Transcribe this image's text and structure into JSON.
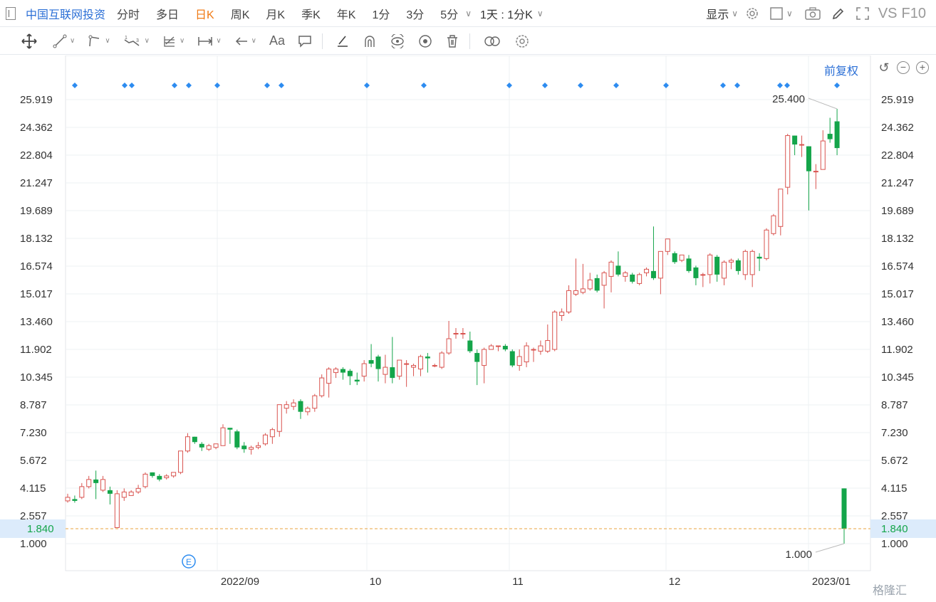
{
  "top_bar": {
    "stock_name": "中国互联网投资",
    "periods": [
      "分时",
      "多日",
      "日K",
      "周K",
      "月K",
      "季K",
      "年K",
      "1分",
      "3分",
      "5分"
    ],
    "active_period": "日K",
    "range_select": "1天 : 1分K",
    "display_label": "显示",
    "vs_label": "VS",
    "f10_label": "F10"
  },
  "draw_tools": [
    "move-icon",
    "line-icon",
    "polyline-icon",
    "wave-icon",
    "fib-icon",
    "range-icon",
    "arrow-icon",
    "text-icon",
    "comment-icon",
    "pen-icon",
    "arc-icon",
    "eye-cycle-icon",
    "eye-icon",
    "trash-icon",
    "link-icon",
    "settings-icon"
  ],
  "text_tool_label": "Aa",
  "adjust_label": "前复权",
  "watermark": "格隆汇",
  "colors": {
    "up": "#d9534f",
    "down": "#14a54a",
    "accent": "#2b6fd6",
    "active": "#f07a14",
    "current_line": "#e8a33d"
  },
  "chart_data": {
    "type": "candlestick",
    "y_ticks": [
      "25.919",
      "24.362",
      "22.804",
      "21.247",
      "19.689",
      "18.132",
      "16.574",
      "15.017",
      "13.460",
      "11.902",
      "10.345",
      "8.787",
      "7.230",
      "5.672",
      "4.115",
      "2.557",
      "1.000"
    ],
    "ylim": [
      1.0,
      25.919
    ],
    "x_labels": [
      "2022/09",
      "10",
      "11",
      "12",
      "2023/01"
    ],
    "current_price": "1.840",
    "max_label": "25.400",
    "min_label": "1.000",
    "event_marker": "E",
    "candles": [
      {
        "o": 3.4,
        "c": 3.6,
        "h": 3.8,
        "l": 3.3
      },
      {
        "o": 3.5,
        "c": 3.4,
        "h": 3.7,
        "l": 3.3
      },
      {
        "o": 3.6,
        "c": 4.2,
        "h": 4.4,
        "l": 3.5
      },
      {
        "o": 4.2,
        "c": 4.6,
        "h": 4.8,
        "l": 4.1
      },
      {
        "o": 4.6,
        "c": 4.4,
        "h": 5.1,
        "l": 3.5
      },
      {
        "o": 4.0,
        "c": 4.6,
        "h": 4.8,
        "l": 3.9
      },
      {
        "o": 4.0,
        "c": 3.8,
        "h": 4.2,
        "l": 3.2
      },
      {
        "o": 1.9,
        "c": 3.8,
        "h": 4.0,
        "l": 1.9
      },
      {
        "o": 3.6,
        "c": 3.9,
        "h": 4.1,
        "l": 3.4
      },
      {
        "o": 3.7,
        "c": 3.9,
        "h": 4.0,
        "l": 3.7
      },
      {
        "o": 3.9,
        "c": 4.1,
        "h": 4.3,
        "l": 3.8
      },
      {
        "o": 4.2,
        "c": 4.9,
        "h": 5.0,
        "l": 4.1
      },
      {
        "o": 5.0,
        "c": 4.8,
        "h": 5.0,
        "l": 4.7
      },
      {
        "o": 4.8,
        "c": 4.6,
        "h": 4.9,
        "l": 4.5
      },
      {
        "o": 4.7,
        "c": 4.8,
        "h": 4.9,
        "l": 4.6
      },
      {
        "o": 4.8,
        "c": 5.0,
        "h": 5.0,
        "l": 4.7
      },
      {
        "o": 5.0,
        "c": 6.2,
        "h": 6.2,
        "l": 4.9
      },
      {
        "o": 6.2,
        "c": 7.0,
        "h": 7.2,
        "l": 6.1
      },
      {
        "o": 7.0,
        "c": 6.7,
        "h": 7.0,
        "l": 6.6
      },
      {
        "o": 6.6,
        "c": 6.4,
        "h": 6.7,
        "l": 6.2
      },
      {
        "o": 6.3,
        "c": 6.5,
        "h": 6.6,
        "l": 6.2
      },
      {
        "o": 6.4,
        "c": 6.6,
        "h": 6.6,
        "l": 6.3
      },
      {
        "o": 6.5,
        "c": 7.5,
        "h": 7.7,
        "l": 6.5
      },
      {
        "o": 7.5,
        "c": 7.4,
        "h": 7.5,
        "l": 6.6
      },
      {
        "o": 7.3,
        "c": 6.4,
        "h": 7.4,
        "l": 6.3
      },
      {
        "o": 6.5,
        "c": 6.3,
        "h": 6.7,
        "l": 6.1
      },
      {
        "o": 6.3,
        "c": 6.4,
        "h": 6.5,
        "l": 6.0
      },
      {
        "o": 6.4,
        "c": 6.5,
        "h": 6.7,
        "l": 6.3
      },
      {
        "o": 6.6,
        "c": 7.1,
        "h": 7.2,
        "l": 6.5
      },
      {
        "o": 7.0,
        "c": 7.4,
        "h": 7.5,
        "l": 6.6
      },
      {
        "o": 7.3,
        "c": 8.8,
        "h": 8.8,
        "l": 7.0
      },
      {
        "o": 8.6,
        "c": 8.8,
        "h": 9.0,
        "l": 8.3
      },
      {
        "o": 8.7,
        "c": 8.9,
        "h": 9.1,
        "l": 8.5
      },
      {
        "o": 9.0,
        "c": 8.4,
        "h": 9.1,
        "l": 8.0
      },
      {
        "o": 8.4,
        "c": 8.6,
        "h": 8.7,
        "l": 8.2
      },
      {
        "o": 8.6,
        "c": 9.3,
        "h": 9.4,
        "l": 8.4
      },
      {
        "o": 9.3,
        "c": 10.3,
        "h": 10.5,
        "l": 9.2
      },
      {
        "o": 10.0,
        "c": 10.8,
        "h": 10.9,
        "l": 9.2
      },
      {
        "o": 10.6,
        "c": 10.8,
        "h": 10.9,
        "l": 10.3
      },
      {
        "o": 10.8,
        "c": 10.6,
        "h": 10.9,
        "l": 10.2
      },
      {
        "o": 10.7,
        "c": 10.4,
        "h": 10.8,
        "l": 9.9
      },
      {
        "o": 10.2,
        "c": 10.1,
        "h": 10.6,
        "l": 9.9
      },
      {
        "o": 10.4,
        "c": 11.1,
        "h": 11.3,
        "l": 10.1
      },
      {
        "o": 11.3,
        "c": 11.1,
        "h": 12.2,
        "l": 10.9
      },
      {
        "o": 11.5,
        "c": 10.8,
        "h": 11.6,
        "l": 10.1
      },
      {
        "o": 10.5,
        "c": 10.9,
        "h": 11.6,
        "l": 10.0
      },
      {
        "o": 10.9,
        "c": 10.3,
        "h": 12.6,
        "l": 10.0
      },
      {
        "o": 10.4,
        "c": 11.3,
        "h": 11.3,
        "l": 10.2
      },
      {
        "o": 11.1,
        "c": 11.1,
        "h": 11.3,
        "l": 9.8
      },
      {
        "o": 10.9,
        "c": 11.0,
        "h": 11.1,
        "l": 10.4
      },
      {
        "o": 10.8,
        "c": 11.5,
        "h": 11.6,
        "l": 10.4
      },
      {
        "o": 11.5,
        "c": 11.4,
        "h": 11.7,
        "l": 10.6
      },
      {
        "o": 11.0,
        "c": 11.0,
        "h": 11.1,
        "l": 10.9
      },
      {
        "o": 10.9,
        "c": 11.7,
        "h": 11.8,
        "l": 10.8
      },
      {
        "o": 11.7,
        "c": 12.5,
        "h": 13.5,
        "l": 11.6
      },
      {
        "o": 12.8,
        "c": 12.8,
        "h": 13.1,
        "l": 12.5
      },
      {
        "o": 12.8,
        "c": 12.8,
        "h": 13.1,
        "l": 12.5
      },
      {
        "o": 12.4,
        "c": 11.8,
        "h": 12.9,
        "l": 11.7
      },
      {
        "o": 11.7,
        "c": 11.2,
        "h": 11.9,
        "l": 9.9
      },
      {
        "o": 11.0,
        "c": 11.9,
        "h": 12.0,
        "l": 10.0
      },
      {
        "o": 11.9,
        "c": 12.1,
        "h": 12.2,
        "l": 11.9
      },
      {
        "o": 12.1,
        "c": 12.1,
        "h": 12.1,
        "l": 11.8
      },
      {
        "o": 12.1,
        "c": 11.9,
        "h": 12.2,
        "l": 11.8
      },
      {
        "o": 11.8,
        "c": 11.0,
        "h": 11.9,
        "l": 10.9
      },
      {
        "o": 11.0,
        "c": 11.5,
        "h": 11.9,
        "l": 10.7
      },
      {
        "o": 11.2,
        "c": 12.1,
        "h": 12.3,
        "l": 10.9
      },
      {
        "o": 11.9,
        "c": 11.9,
        "h": 12.0,
        "l": 11.2
      },
      {
        "o": 11.8,
        "c": 12.1,
        "h": 12.4,
        "l": 11.6
      },
      {
        "o": 11.8,
        "c": 12.4,
        "h": 13.3,
        "l": 11.7
      },
      {
        "o": 11.9,
        "c": 14.0,
        "h": 14.1,
        "l": 11.8
      },
      {
        "o": 13.8,
        "c": 14.0,
        "h": 14.2,
        "l": 13.5
      },
      {
        "o": 14.0,
        "c": 15.2,
        "h": 15.5,
        "l": 13.9
      },
      {
        "o": 15.0,
        "c": 15.2,
        "h": 17.0,
        "l": 14.9
      },
      {
        "o": 15.1,
        "c": 15.3,
        "h": 16.7,
        "l": 15.0
      },
      {
        "o": 15.3,
        "c": 15.8,
        "h": 16.2,
        "l": 15.2
      },
      {
        "o": 15.9,
        "c": 15.2,
        "h": 16.1,
        "l": 15.1
      },
      {
        "o": 15.5,
        "c": 16.2,
        "h": 16.3,
        "l": 14.2
      },
      {
        "o": 16.0,
        "c": 16.8,
        "h": 16.9,
        "l": 15.1
      },
      {
        "o": 16.6,
        "c": 16.1,
        "h": 17.4,
        "l": 16.0
      },
      {
        "o": 16.0,
        "c": 16.2,
        "h": 16.3,
        "l": 15.7
      },
      {
        "o": 16.1,
        "c": 15.7,
        "h": 16.2,
        "l": 15.6
      },
      {
        "o": 15.6,
        "c": 16.1,
        "h": 16.2,
        "l": 15.5
      },
      {
        "o": 16.2,
        "c": 16.4,
        "h": 16.5,
        "l": 16.0
      },
      {
        "o": 16.3,
        "c": 15.9,
        "h": 18.8,
        "l": 15.8
      },
      {
        "o": 15.9,
        "c": 17.4,
        "h": 17.4,
        "l": 15.0
      },
      {
        "o": 17.4,
        "c": 18.1,
        "h": 18.1,
        "l": 17.2
      },
      {
        "o": 17.3,
        "c": 16.8,
        "h": 17.4,
        "l": 16.7
      },
      {
        "o": 16.9,
        "c": 17.2,
        "h": 17.2,
        "l": 16.8
      },
      {
        "o": 17.0,
        "c": 16.3,
        "h": 17.2,
        "l": 16.2
      },
      {
        "o": 16.5,
        "c": 15.9,
        "h": 16.6,
        "l": 15.5
      },
      {
        "o": 16.1,
        "c": 16.1,
        "h": 16.2,
        "l": 15.4
      },
      {
        "o": 16.1,
        "c": 17.2,
        "h": 17.3,
        "l": 15.6
      },
      {
        "o": 17.1,
        "c": 16.1,
        "h": 17.2,
        "l": 15.7
      },
      {
        "o": 15.9,
        "c": 16.8,
        "h": 16.9,
        "l": 15.5
      },
      {
        "o": 16.8,
        "c": 16.9,
        "h": 17.0,
        "l": 16.4
      },
      {
        "o": 16.9,
        "c": 16.3,
        "h": 17.0,
        "l": 16.1
      },
      {
        "o": 16.1,
        "c": 17.4,
        "h": 17.5,
        "l": 15.8
      },
      {
        "o": 16.1,
        "c": 17.4,
        "h": 17.5,
        "l": 15.4
      },
      {
        "o": 17.1,
        "c": 17.0,
        "h": 17.3,
        "l": 16.3
      },
      {
        "o": 17.0,
        "c": 18.6,
        "h": 18.7,
        "l": 16.9
      },
      {
        "o": 18.4,
        "c": 19.4,
        "h": 19.5,
        "l": 18.3
      },
      {
        "o": 18.8,
        "c": 20.9,
        "h": 20.9,
        "l": 18.3
      },
      {
        "o": 21.0,
        "c": 23.9,
        "h": 24.0,
        "l": 20.6
      },
      {
        "o": 23.9,
        "c": 23.4,
        "h": 23.9,
        "l": 22.8
      },
      {
        "o": 23.4,
        "c": 23.4,
        "h": 23.9,
        "l": 22.7
      },
      {
        "o": 23.3,
        "c": 21.9,
        "h": 23.3,
        "l": 19.7
      },
      {
        "o": 21.9,
        "c": 21.9,
        "h": 22.3,
        "l": 20.9
      },
      {
        "o": 22.0,
        "c": 23.6,
        "h": 24.2,
        "l": 22.0
      },
      {
        "o": 24.0,
        "c": 23.7,
        "h": 24.9,
        "l": 23.5
      },
      {
        "o": 24.7,
        "c": 23.2,
        "h": 25.4,
        "l": 22.8
      },
      {
        "o": 4.1,
        "c": 1.84,
        "h": 4.1,
        "l": 1.0
      }
    ]
  }
}
